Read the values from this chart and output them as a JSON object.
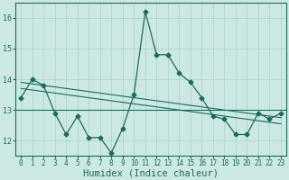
{
  "xlabel": "Humidex (Indice chaleur)",
  "x": [
    0,
    1,
    2,
    3,
    4,
    5,
    6,
    7,
    8,
    9,
    10,
    11,
    12,
    13,
    14,
    15,
    16,
    17,
    18,
    19,
    20,
    21,
    22,
    23
  ],
  "y_main": [
    13.4,
    14.0,
    13.8,
    12.9,
    12.2,
    12.8,
    12.1,
    12.1,
    11.6,
    12.4,
    13.5,
    16.2,
    14.8,
    14.8,
    14.2,
    13.9,
    13.4,
    12.8,
    12.7,
    12.2,
    12.2,
    12.9,
    12.7,
    12.9
  ],
  "y_trend1": [
    13.9,
    13.85,
    13.8,
    13.75,
    13.7,
    13.65,
    13.6,
    13.55,
    13.5,
    13.45,
    13.4,
    13.35,
    13.3,
    13.25,
    13.2,
    13.15,
    13.1,
    13.05,
    13.0,
    12.95,
    12.9,
    12.85,
    12.8,
    12.75
  ],
  "y_trend2": [
    13.7,
    13.65,
    13.6,
    13.55,
    13.5,
    13.45,
    13.4,
    13.35,
    13.3,
    13.25,
    13.2,
    13.15,
    13.1,
    13.05,
    13.0,
    12.95,
    12.9,
    12.85,
    12.8,
    12.75,
    12.7,
    12.65,
    12.6,
    12.55
  ],
  "y_flat": 13.0,
  "ylim": [
    11.5,
    16.5
  ],
  "xlim": [
    -0.5,
    23.5
  ],
  "yticks": [
    12,
    13,
    14,
    15,
    16
  ],
  "bg_color": "#cce8e5",
  "line_color": "#1a6b5e",
  "grid_color": "#aacfcc",
  "marker": "D",
  "marker_size": 2.5,
  "linewidth": 0.9,
  "tick_fontsize": 5.5,
  "xlabel_fontsize": 7.5
}
